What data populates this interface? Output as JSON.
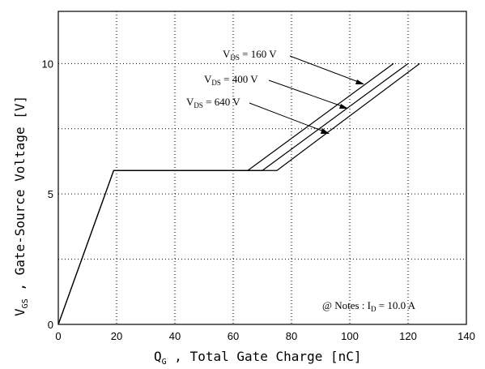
{
  "chart_data": {
    "type": "line",
    "xlabel_main": "Q",
    "xlabel_sub": "G",
    "xlabel_rest": " , Total Gate Charge  [nC]",
    "ylabel_main": "V",
    "ylabel_sub": "GS",
    "ylabel_rest": " , Gate-Source Voltage  [V]",
    "xlim": [
      0,
      140
    ],
    "ylim": [
      0,
      12
    ],
    "x_ticks": [
      0,
      20,
      40,
      60,
      80,
      100,
      120,
      140
    ],
    "x_tick_labels": [
      "0",
      "20",
      "40",
      "60",
      "80",
      "100",
      "120",
      "140"
    ],
    "y_ticks": [
      0,
      5,
      10
    ],
    "y_tick_labels": [
      "0",
      "5",
      "10"
    ],
    "y_gridlines": [
      2.5,
      5,
      7.5,
      10
    ],
    "x_gridlines": [
      20,
      40,
      60,
      80,
      100,
      120
    ],
    "grid": true,
    "series": [
      {
        "name": "V_DS = 160 V",
        "x": [
          0,
          19,
          65,
          115
        ],
        "y": [
          0,
          5.9,
          5.9,
          10.0
        ]
      },
      {
        "name": "V_DS = 400 V",
        "x": [
          0,
          19,
          70,
          120
        ],
        "y": [
          0,
          5.9,
          5.9,
          10.0
        ]
      },
      {
        "name": "V_DS = 640 V",
        "x": [
          0,
          19,
          75,
          124
        ],
        "y": [
          0,
          5.9,
          5.9,
          10.0
        ]
      }
    ],
    "series_labels": [
      {
        "main": "V",
        "sub": "DS",
        "rest": " = 160 V"
      },
      {
        "main": "V",
        "sub": "DS",
        "rest": " = 400 V"
      },
      {
        "main": "V",
        "sub": "DS",
        "rest": " = 640 V"
      }
    ],
    "note": {
      "prefix": "@ Notes : I",
      "sub": "D",
      "rest": " = 10.0 A"
    }
  }
}
